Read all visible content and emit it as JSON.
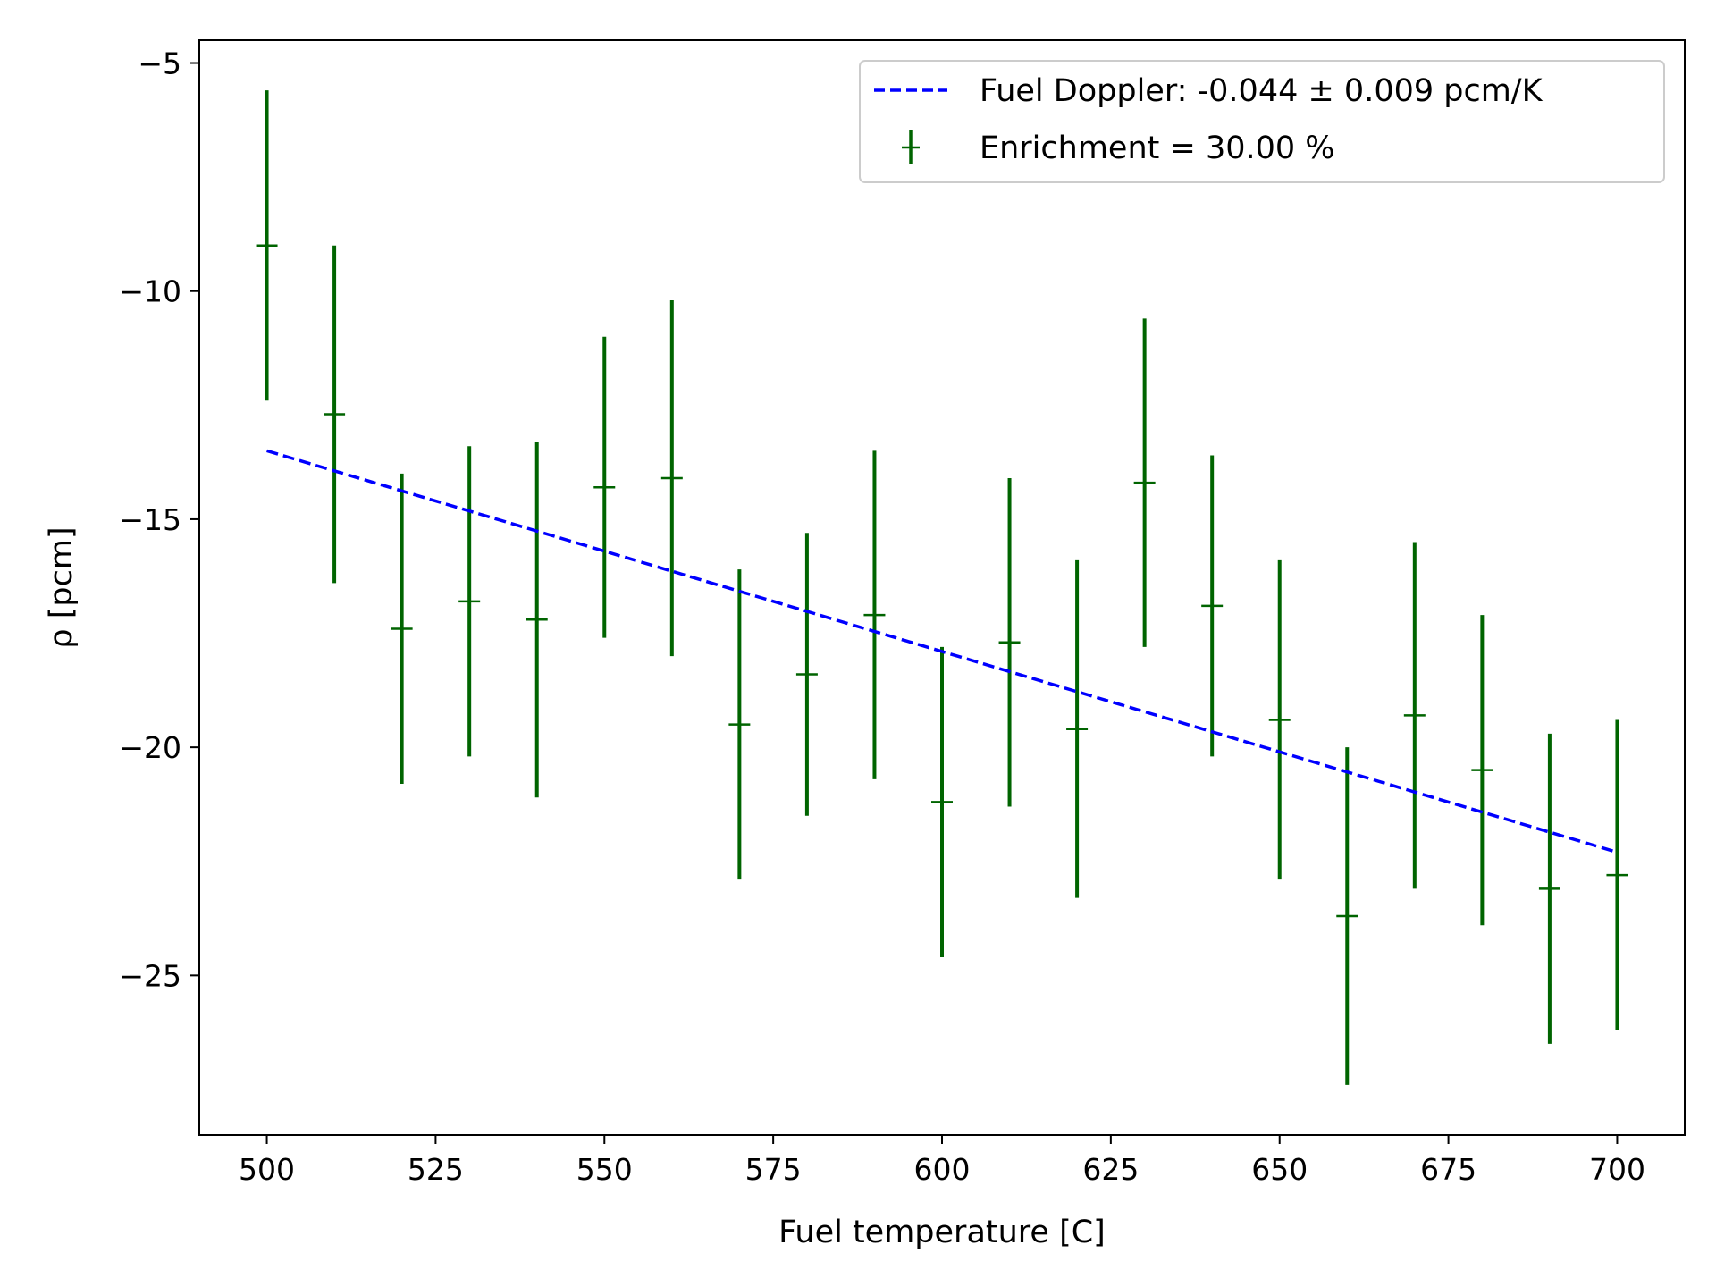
{
  "chart_data": {
    "type": "scatter",
    "title": "",
    "xlabel": "Fuel temperature [C]",
    "ylabel": "ρ [pcm]",
    "xlim": [
      490,
      710
    ],
    "ylim": [
      -28.5,
      -4.5
    ],
    "xticks": [
      500,
      525,
      550,
      575,
      600,
      625,
      650,
      675,
      700
    ],
    "xtick_labels": [
      "500",
      "525",
      "550",
      "575",
      "600",
      "625",
      "650",
      "675",
      "700"
    ],
    "yticks": [
      -5,
      -10,
      -15,
      -20,
      -25
    ],
    "ytick_labels": [
      "−5",
      "−10",
      "−15",
      "−20",
      "−25"
    ],
    "grid": false,
    "legend_position": "top-right",
    "colors": {
      "data": "#006400",
      "fit": "#0000ff"
    },
    "series": [
      {
        "name": "Enrichment = 30.00 %",
        "kind": "errorbar",
        "x": [
          500,
          510,
          520,
          530,
          540,
          550,
          560,
          570,
          580,
          590,
          600,
          610,
          620,
          630,
          640,
          650,
          660,
          670,
          680,
          690,
          700
        ],
        "y": [
          -9.0,
          -12.7,
          -17.4,
          -16.8,
          -17.2,
          -14.3,
          -14.1,
          -19.5,
          -18.4,
          -17.1,
          -21.2,
          -17.7,
          -19.6,
          -14.2,
          -16.9,
          -19.4,
          -23.7,
          -19.3,
          -20.5,
          -23.1,
          -22.8
        ],
        "yerr": [
          3.4,
          3.7,
          3.4,
          3.4,
          3.9,
          3.3,
          3.9,
          3.4,
          3.1,
          3.6,
          3.4,
          3.6,
          3.7,
          3.6,
          3.3,
          3.5,
          3.7,
          3.8,
          3.4,
          3.4,
          3.4
        ]
      },
      {
        "name": "Fuel Doppler: -0.044 ± 0.009 pcm/K",
        "kind": "line",
        "style": "dashed",
        "x": [
          500,
          700
        ],
        "y": [
          -13.5,
          -22.3
        ]
      }
    ]
  }
}
